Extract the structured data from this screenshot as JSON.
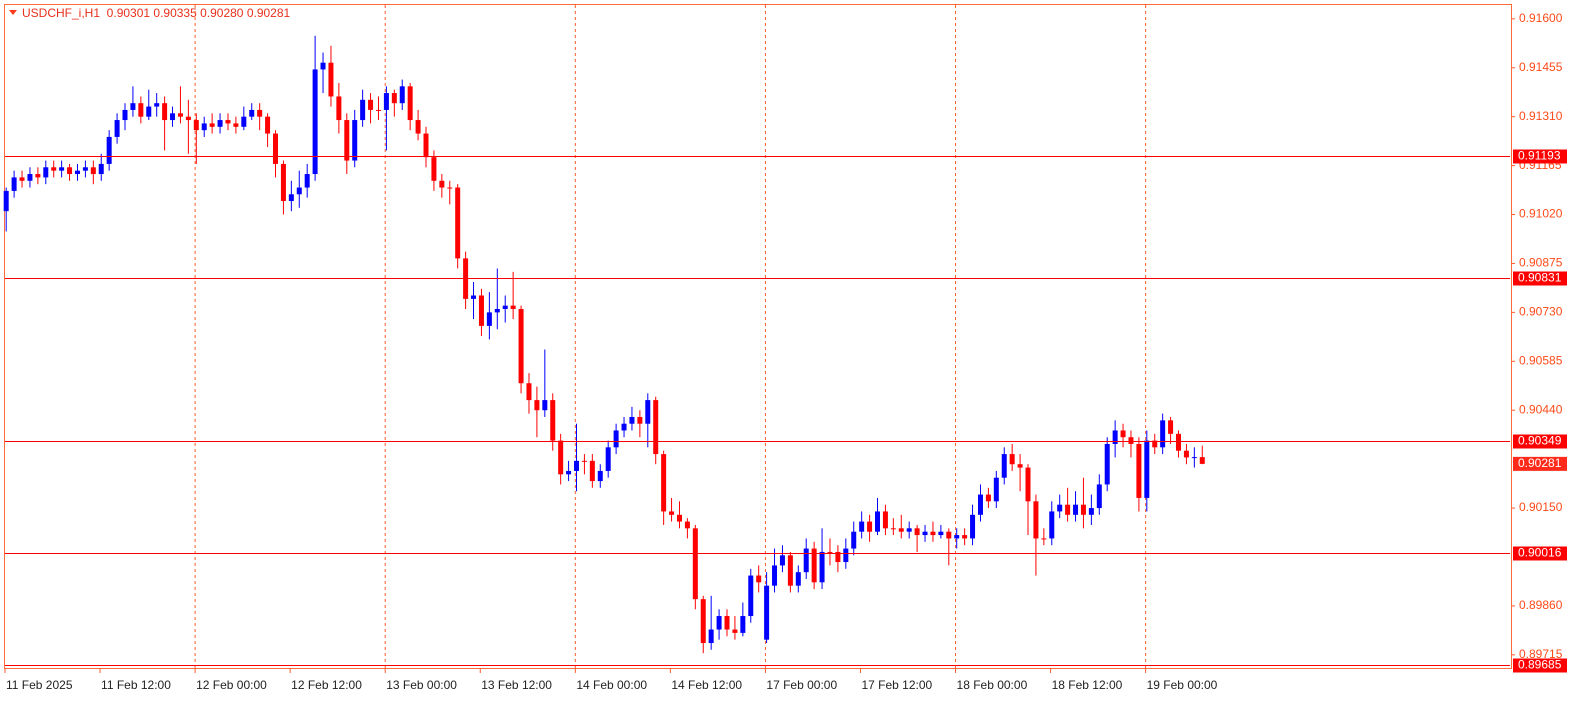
{
  "chart_data": {
    "type": "candlestick",
    "title": "USDCHF_i,H1  0.90301 0.90335 0.90280 0.90281",
    "up_color": "#0000ff",
    "down_color": "#ff0000",
    "level_color": "#ff0000",
    "ylim": [
      0.89676,
      0.91641
    ],
    "xlim": [
      0,
      190
    ],
    "yticks": [
      {
        "value": 0.916,
        "label": "0.91600"
      },
      {
        "value": 0.91455,
        "label": "0.91455"
      },
      {
        "value": 0.9131,
        "label": "0.91310"
      },
      {
        "value": 0.91165,
        "label": "0.91165"
      },
      {
        "value": 0.9102,
        "label": "0.91020"
      },
      {
        "value": 0.90875,
        "label": "0.90875"
      },
      {
        "value": 0.9073,
        "label": "0.90730"
      },
      {
        "value": 0.90585,
        "label": "0.90585"
      },
      {
        "value": 0.9044,
        "label": "0.90440"
      },
      {
        "value": 0.9015,
        "label": "0.90150"
      },
      {
        "value": 0.8986,
        "label": "0.89860"
      },
      {
        "value": 0.89715,
        "label": "0.89715"
      }
    ],
    "xticks": [
      {
        "value": 0,
        "label": "11 Feb 2025"
      },
      {
        "value": 12,
        "label": "11 Feb 12:00"
      },
      {
        "value": 24,
        "label": "12 Feb 00:00"
      },
      {
        "value": 36,
        "label": "12 Feb 12:00"
      },
      {
        "value": 48,
        "label": "13 Feb 00:00"
      },
      {
        "value": 60,
        "label": "13 Feb 12:00"
      },
      {
        "value": 72,
        "label": "14 Feb 00:00"
      },
      {
        "value": 84,
        "label": "14 Feb 12:00"
      },
      {
        "value": 96,
        "label": "17 Feb 00:00"
      },
      {
        "value": 108,
        "label": "17 Feb 12:00"
      },
      {
        "value": 120,
        "label": "18 Feb 00:00"
      },
      {
        "value": 132,
        "label": "18 Feb 12:00"
      },
      {
        "value": 144,
        "label": "19 Feb 00:00"
      }
    ],
    "levels": [
      {
        "value": 0.91193,
        "label": "0.91193"
      },
      {
        "value": 0.90831,
        "label": "0.90831"
      },
      {
        "value": 0.90349,
        "label": "0.90349"
      },
      {
        "value": 0.90016,
        "label": "0.90016"
      },
      {
        "value": 0.89685,
        "label": "0.89685"
      }
    ],
    "current_price": {
      "value": 0.90281,
      "label": "0.90281"
    },
    "candles": [
      [
        0.9103,
        0.911,
        0.9097,
        0.9109
      ],
      [
        0.9109,
        0.9115,
        0.9107,
        0.9113
      ],
      [
        0.9113,
        0.9115,
        0.911,
        0.9112
      ],
      [
        0.9112,
        0.9116,
        0.911,
        0.9114
      ],
      [
        0.9114,
        0.9116,
        0.9111,
        0.9113
      ],
      [
        0.9113,
        0.9118,
        0.9111,
        0.9116
      ],
      [
        0.9116,
        0.9118,
        0.9113,
        0.9115
      ],
      [
        0.9115,
        0.9118,
        0.9113,
        0.9116
      ],
      [
        0.9116,
        0.9117,
        0.9112,
        0.9114
      ],
      [
        0.9114,
        0.9117,
        0.9112,
        0.9115
      ],
      [
        0.9115,
        0.9118,
        0.9113,
        0.9116
      ],
      [
        0.9116,
        0.9118,
        0.9111,
        0.9114
      ],
      [
        0.9114,
        0.912,
        0.9112,
        0.9117
      ],
      [
        0.9117,
        0.9127,
        0.9115,
        0.9125
      ],
      [
        0.9125,
        0.9132,
        0.9123,
        0.913
      ],
      [
        0.913,
        0.9135,
        0.9127,
        0.9133
      ],
      [
        0.9133,
        0.914,
        0.9131,
        0.9135
      ],
      [
        0.9135,
        0.9137,
        0.9129,
        0.9131
      ],
      [
        0.9131,
        0.9139,
        0.913,
        0.9134
      ],
      [
        0.9134,
        0.9138,
        0.9131,
        0.9135
      ],
      [
        0.9135,
        0.9137,
        0.9121,
        0.913
      ],
      [
        0.913,
        0.9134,
        0.9128,
        0.9132
      ],
      [
        0.9132,
        0.914,
        0.9129,
        0.9131
      ],
      [
        0.9131,
        0.9136,
        0.912,
        0.913
      ],
      [
        0.913,
        0.9132,
        0.9117,
        0.9127
      ],
      [
        0.9127,
        0.9131,
        0.9125,
        0.9129
      ],
      [
        0.9129,
        0.9132,
        0.9126,
        0.9128
      ],
      [
        0.9128,
        0.9132,
        0.9126,
        0.913
      ],
      [
        0.913,
        0.9132,
        0.9127,
        0.9129
      ],
      [
        0.9129,
        0.9131,
        0.9126,
        0.9128
      ],
      [
        0.9128,
        0.9134,
        0.9127,
        0.9131
      ],
      [
        0.9131,
        0.9135,
        0.913,
        0.9133
      ],
      [
        0.9133,
        0.9135,
        0.9127,
        0.9131
      ],
      [
        0.9131,
        0.9132,
        0.9122,
        0.9126
      ],
      [
        0.9126,
        0.9127,
        0.9113,
        0.9117
      ],
      [
        0.9117,
        0.9118,
        0.9102,
        0.9106
      ],
      [
        0.9106,
        0.9112,
        0.9103,
        0.9108
      ],
      [
        0.9108,
        0.9115,
        0.9104,
        0.911
      ],
      [
        0.911,
        0.9117,
        0.9107,
        0.9114
      ],
      [
        0.9114,
        0.9155,
        0.9112,
        0.9145
      ],
      [
        0.9145,
        0.915,
        0.9138,
        0.9147
      ],
      [
        0.9147,
        0.9152,
        0.9134,
        0.9137
      ],
      [
        0.9137,
        0.9141,
        0.9126,
        0.913
      ],
      [
        0.913,
        0.9132,
        0.9114,
        0.9118
      ],
      [
        0.9118,
        0.9133,
        0.9116,
        0.913
      ],
      [
        0.913,
        0.9139,
        0.9128,
        0.9136
      ],
      [
        0.9136,
        0.9138,
        0.9129,
        0.9133
      ],
      [
        0.9133,
        0.9137,
        0.913,
        0.9133
      ],
      [
        0.9133,
        0.914,
        0.9121,
        0.9138
      ],
      [
        0.9138,
        0.9139,
        0.9131,
        0.9135
      ],
      [
        0.9135,
        0.9142,
        0.9133,
        0.914
      ],
      [
        0.914,
        0.9141,
        0.9127,
        0.913
      ],
      [
        0.913,
        0.9133,
        0.9124,
        0.9126
      ],
      [
        0.9126,
        0.9128,
        0.9116,
        0.9119
      ],
      [
        0.9119,
        0.9121,
        0.9109,
        0.9112
      ],
      [
        0.9112,
        0.9114,
        0.9107,
        0.911
      ],
      [
        0.911,
        0.9112,
        0.9105,
        0.911
      ],
      [
        0.911,
        0.9111,
        0.9086,
        0.9089
      ],
      [
        0.9089,
        0.9091,
        0.9074,
        0.9077
      ],
      [
        0.9077,
        0.9082,
        0.9071,
        0.9078
      ],
      [
        0.9078,
        0.908,
        0.9066,
        0.9069
      ],
      [
        0.9069,
        0.9079,
        0.9065,
        0.9073
      ],
      [
        0.9073,
        0.9086,
        0.9068,
        0.9074
      ],
      [
        0.9074,
        0.9078,
        0.907,
        0.9075
      ],
      [
        0.9075,
        0.9085,
        0.9071,
        0.9074
      ],
      [
        0.9074,
        0.9075,
        0.9049,
        0.9052
      ],
      [
        0.9052,
        0.9055,
        0.9043,
        0.9047
      ],
      [
        0.9047,
        0.9051,
        0.9036,
        0.9044
      ],
      [
        0.9044,
        0.9062,
        0.9042,
        0.9047
      ],
      [
        0.9047,
        0.9049,
        0.9032,
        0.9035
      ],
      [
        0.9035,
        0.9037,
        0.9022,
        0.9025
      ],
      [
        0.9025,
        0.9029,
        0.9023,
        0.9026
      ],
      [
        0.9026,
        0.904,
        0.902,
        0.9029
      ],
      [
        0.9029,
        0.9031,
        0.9025,
        0.9029
      ],
      [
        0.9029,
        0.9031,
        0.9021,
        0.9023
      ],
      [
        0.9023,
        0.9028,
        0.9021,
        0.9026
      ],
      [
        0.9026,
        0.9035,
        0.9024,
        0.9033
      ],
      [
        0.9033,
        0.904,
        0.9031,
        0.9038
      ],
      [
        0.9038,
        0.9042,
        0.9036,
        0.904
      ],
      [
        0.904,
        0.9045,
        0.9038,
        0.9042
      ],
      [
        0.9042,
        0.9044,
        0.9036,
        0.904
      ],
      [
        0.904,
        0.9049,
        0.9033,
        0.9047
      ],
      [
        0.9047,
        0.9048,
        0.9028,
        0.9031
      ],
      [
        0.9031,
        0.9032,
        0.901,
        0.9014
      ],
      [
        0.9014,
        0.9018,
        0.9011,
        0.9013
      ],
      [
        0.9013,
        0.9017,
        0.9009,
        0.9011
      ],
      [
        0.9011,
        0.9012,
        0.9006,
        0.9009
      ],
      [
        0.9009,
        0.901,
        0.8985,
        0.8988
      ],
      [
        0.8988,
        0.8989,
        0.8972,
        0.8975
      ],
      [
        0.8975,
        0.8989,
        0.8973,
        0.8979
      ],
      [
        0.8979,
        0.8985,
        0.8976,
        0.8983
      ],
      [
        0.8983,
        0.8985,
        0.8977,
        0.8979
      ],
      [
        0.8979,
        0.8983,
        0.8976,
        0.8978
      ],
      [
        0.8978,
        0.8987,
        0.8977,
        0.8983
      ],
      [
        0.8983,
        0.8997,
        0.8981,
        0.8995
      ],
      [
        0.8995,
        0.8998,
        0.899,
        0.8993
      ],
      [
        0.8976,
        0.8996,
        0.8975,
        0.8992
      ],
      [
        0.8992,
        0.9003,
        0.899,
        0.8998
      ],
      [
        0.8998,
        0.9004,
        0.8996,
        0.9001
      ],
      [
        0.9001,
        0.9002,
        0.899,
        0.8992
      ],
      [
        0.8992,
        0.8998,
        0.899,
        0.8996
      ],
      [
        0.8996,
        0.9006,
        0.8994,
        0.9003
      ],
      [
        0.9003,
        0.9005,
        0.8991,
        0.8993
      ],
      [
        0.8993,
        0.9009,
        0.8991,
        0.9002
      ],
      [
        0.9002,
        0.9006,
        0.8998,
        0.9002
      ],
      [
        0.9002,
        0.9004,
        0.8996,
        0.8999
      ],
      [
        0.8999,
        0.9006,
        0.8997,
        0.9003
      ],
      [
        0.9003,
        0.9011,
        0.9001,
        0.9008
      ],
      [
        0.9008,
        0.9014,
        0.9006,
        0.9011
      ],
      [
        0.9011,
        0.9013,
        0.9005,
        0.9008
      ],
      [
        0.9008,
        0.9018,
        0.9007,
        0.9014
      ],
      [
        0.9014,
        0.9016,
        0.9007,
        0.9009
      ],
      [
        0.9009,
        0.9012,
        0.9007,
        0.9009
      ],
      [
        0.9009,
        0.9013,
        0.9006,
        0.9008
      ],
      [
        0.9008,
        0.9011,
        0.9006,
        0.9009
      ],
      [
        0.9009,
        0.901,
        0.9002,
        0.9007
      ],
      [
        0.9007,
        0.901,
        0.9005,
        0.9008
      ],
      [
        0.9008,
        0.9011,
        0.9005,
        0.9007
      ],
      [
        0.9007,
        0.901,
        0.9006,
        0.9008
      ],
      [
        0.9008,
        0.9009,
        0.8998,
        0.9006
      ],
      [
        0.9006,
        0.9009,
        0.9003,
        0.9007
      ],
      [
        0.9007,
        0.9009,
        0.9004,
        0.9006
      ],
      [
        0.9006,
        0.9016,
        0.9004,
        0.9013
      ],
      [
        0.9013,
        0.9022,
        0.9011,
        0.9019
      ],
      [
        0.9019,
        0.9021,
        0.9015,
        0.9017
      ],
      [
        0.9017,
        0.9026,
        0.9015,
        0.9024
      ],
      [
        0.9024,
        0.9033,
        0.9022,
        0.9031
      ],
      [
        0.9031,
        0.9034,
        0.9026,
        0.9028
      ],
      [
        0.9028,
        0.9031,
        0.902,
        0.9027
      ],
      [
        0.9027,
        0.9028,
        0.9007,
        0.9017
      ],
      [
        0.9017,
        0.9019,
        0.8995,
        0.9006
      ],
      [
        0.9006,
        0.9009,
        0.9004,
        0.9006
      ],
      [
        0.9006,
        0.9017,
        0.9004,
        0.9014
      ],
      [
        0.9014,
        0.9019,
        0.9012,
        0.9016
      ],
      [
        0.9016,
        0.9021,
        0.9011,
        0.9013
      ],
      [
        0.9013,
        0.902,
        0.9011,
        0.9016
      ],
      [
        0.9016,
        0.9024,
        0.9009,
        0.9013
      ],
      [
        0.9013,
        0.9019,
        0.901,
        0.9015
      ],
      [
        0.9015,
        0.9025,
        0.9013,
        0.9022
      ],
      [
        0.9022,
        0.9036,
        0.902,
        0.9034
      ],
      [
        0.9034,
        0.9041,
        0.903,
        0.9038
      ],
      [
        0.9038,
        0.904,
        0.9033,
        0.9036
      ],
      [
        0.9036,
        0.9038,
        0.903,
        0.9034
      ],
      [
        0.9034,
        0.9036,
        0.9014,
        0.9018
      ],
      [
        0.9018,
        0.9038,
        0.9014,
        0.9035
      ],
      [
        0.9035,
        0.9037,
        0.9031,
        0.9033
      ],
      [
        0.9033,
        0.9043,
        0.9031,
        0.9041
      ],
      [
        0.9041,
        0.9042,
        0.9034,
        0.9037
      ],
      [
        0.9037,
        0.9038,
        0.903,
        0.9032
      ],
      [
        0.9032,
        0.9034,
        0.9028,
        0.903
      ],
      [
        0.903,
        0.9033,
        0.9027,
        0.90301
      ],
      [
        0.90301,
        0.90335,
        0.9028,
        0.90281
      ]
    ]
  }
}
